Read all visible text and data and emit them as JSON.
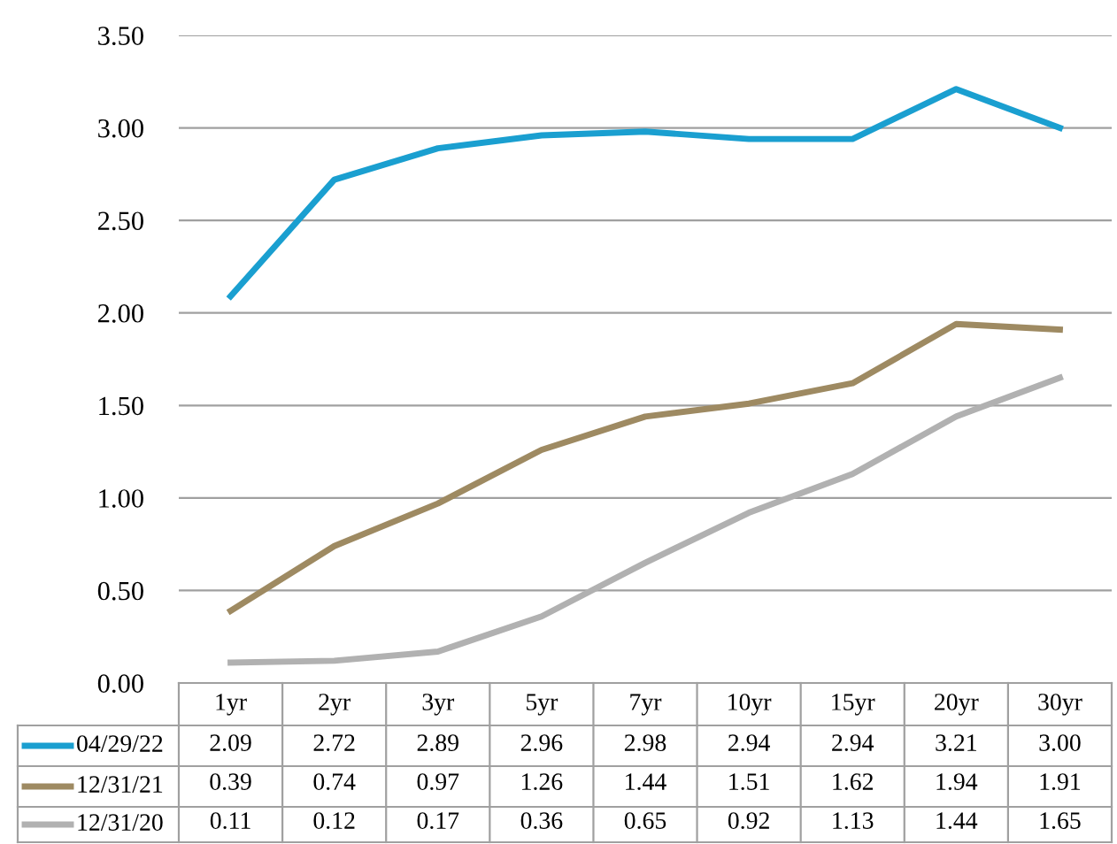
{
  "chart_data": {
    "type": "line",
    "categories": [
      "1yr",
      "2yr",
      "3yr",
      "5yr",
      "7yr",
      "10yr",
      "15yr",
      "20yr",
      "30yr"
    ],
    "series": [
      {
        "name": "04/29/22",
        "color": "#1a9fd0",
        "values": [
          2.09,
          2.72,
          2.89,
          2.96,
          2.98,
          2.94,
          2.94,
          3.21,
          3.0
        ],
        "value_labels": [
          "2.09",
          "2.72",
          "2.89",
          "2.96",
          "2.98",
          "2.94",
          "2.94",
          "3.21",
          "3.00"
        ]
      },
      {
        "name": "12/31/21",
        "color": "#9e8a62",
        "values": [
          0.39,
          0.74,
          0.97,
          1.26,
          1.44,
          1.51,
          1.62,
          1.94,
          1.91
        ],
        "value_labels": [
          "0.39",
          "0.74",
          "0.97",
          "1.26",
          "1.44",
          "1.51",
          "1.62",
          "1.94",
          "1.91"
        ]
      },
      {
        "name": "12/31/20",
        "color": "#b1b1b1",
        "values": [
          0.11,
          0.12,
          0.17,
          0.36,
          0.65,
          0.92,
          1.13,
          1.44,
          1.65
        ],
        "value_labels": [
          "0.11",
          "0.12",
          "0.17",
          "0.36",
          "0.65",
          "0.92",
          "1.13",
          "1.44",
          "1.65"
        ]
      }
    ],
    "ylim": [
      0,
      3.5
    ],
    "yticks": [
      {
        "value": 0,
        "label": "0.00"
      },
      {
        "value": 0.5,
        "label": "0.50"
      },
      {
        "value": 1,
        "label": "1.00"
      },
      {
        "value": 1.5,
        "label": "1.50"
      },
      {
        "value": 2,
        "label": "2.00"
      },
      {
        "value": 2.5,
        "label": "2.50"
      },
      {
        "value": 3,
        "label": "3.00"
      },
      {
        "value": 3.5,
        "label": "3.50"
      }
    ],
    "grid": "y",
    "legend": "bottom",
    "marker": "none",
    "line_style": "solid"
  }
}
